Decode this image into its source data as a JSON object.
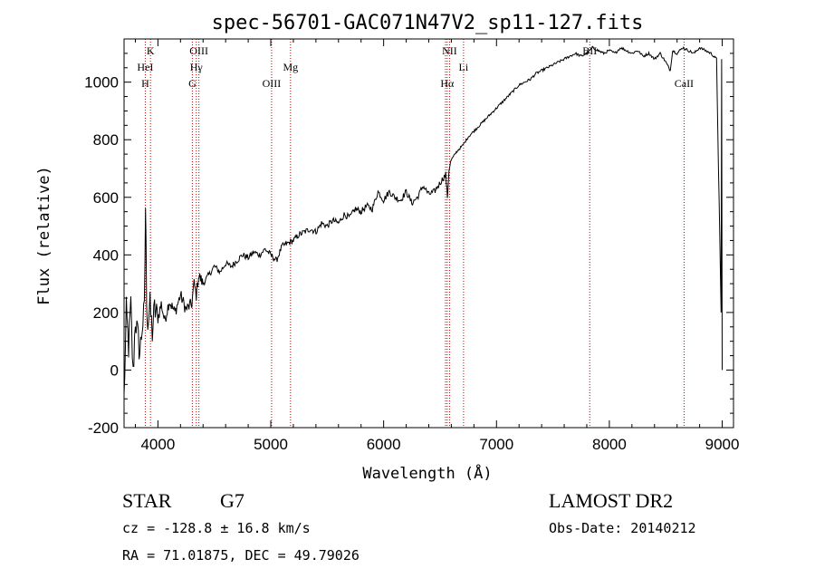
{
  "chart_data": {
    "type": "line",
    "title": "spec-56701-GAC071N47V2_sp11-127.fits",
    "xlabel": "Wavelength (Å)",
    "ylabel": "Flux (relative)",
    "xlim": [
      3700,
      9100
    ],
    "ylim": [
      -200,
      1150
    ],
    "xticks": [
      4000,
      5000,
      6000,
      7000,
      8000,
      9000
    ],
    "yticks": [
      -200,
      0,
      200,
      400,
      600,
      800,
      1000
    ],
    "grid": false,
    "line_color": "#000000",
    "marker_color": "#c00000",
    "series": [
      {
        "x": [
          3700,
          3720,
          3740,
          3760,
          3780,
          3800,
          3820,
          3840,
          3860,
          3880,
          3890,
          3900,
          3910,
          3930,
          3950,
          3970,
          4000,
          4030,
          4060,
          4100,
          4150,
          4200,
          4250,
          4300,
          4320,
          4340,
          4360,
          4400,
          4450,
          4500,
          4550,
          4600,
          4650,
          4700,
          4750,
          4800,
          4850,
          4900,
          4950,
          5000,
          5050,
          5100,
          5150,
          5200,
          5250,
          5300,
          5350,
          5400,
          5450,
          5500,
          5550,
          5600,
          5650,
          5700,
          5750,
          5800,
          5850,
          5900,
          5950,
          6000,
          6050,
          6100,
          6150,
          6200,
          6250,
          6300,
          6350,
          6400,
          6450,
          6500,
          6550,
          6565,
          6580,
          6600,
          6650,
          6700,
          6750,
          6800,
          6850,
          6900,
          6950,
          7000,
          7050,
          7100,
          7150,
          7200,
          7250,
          7300,
          7350,
          7400,
          7450,
          7500,
          7550,
          7600,
          7650,
          7700,
          7750,
          7800,
          7850,
          7900,
          7950,
          8000,
          8050,
          8100,
          8150,
          8200,
          8250,
          8300,
          8350,
          8400,
          8450,
          8500,
          8540,
          8560,
          8600,
          8650,
          8700,
          8750,
          8800,
          8850,
          8900,
          8950,
          8990,
          8995,
          9000
        ],
        "y": [
          -100,
          200,
          80,
          220,
          -20,
          180,
          120,
          60,
          150,
          200,
          570,
          260,
          160,
          220,
          130,
          210,
          180,
          230,
          170,
          240,
          200,
          260,
          210,
          230,
          300,
          260,
          330,
          300,
          330,
          360,
          340,
          370,
          360,
          380,
          400,
          390,
          410,
          400,
          420,
          400,
          380,
          430,
          440,
          450,
          470,
          480,
          490,
          480,
          510,
          500,
          520,
          510,
          540,
          530,
          560,
          550,
          570,
          560,
          620,
          590,
          620,
          600,
          590,
          620,
          580,
          600,
          640,
          610,
          620,
          650,
          680,
          600,
          700,
          730,
          760,
          780,
          810,
          830,
          850,
          870,
          890,
          910,
          930,
          950,
          970,
          990,
          1000,
          1010,
          1030,
          1040,
          1050,
          1060,
          1070,
          1080,
          1090,
          1100,
          1090,
          1100,
          1120,
          1110,
          1100,
          1110,
          1100,
          1120,
          1110,
          1100,
          1110,
          1090,
          1100,
          1080,
          1100,
          1070,
          1040,
          1110,
          1100,
          1120,
          1110,
          1100,
          1120,
          1110,
          1100,
          1080,
          200,
          1080,
          0
        ]
      }
    ],
    "lines": [
      {
        "x": 3888,
        "labels": [
          "HeI",
          "H"
        ]
      },
      {
        "x": 3934,
        "labels": [
          "K"
        ]
      },
      {
        "x": 4305,
        "labels": [
          "G"
        ]
      },
      {
        "x": 4340,
        "labels": [
          "Hγ"
        ]
      },
      {
        "x": 4363,
        "labels": [
          "OIII"
        ]
      },
      {
        "x": 5007,
        "labels": [
          "OIII"
        ]
      },
      {
        "x": 5175,
        "labels": [
          "Mg"
        ]
      },
      {
        "x": 6548,
        "labels": []
      },
      {
        "x": 6563,
        "labels": [
          "Hα"
        ]
      },
      {
        "x": 6584,
        "labels": [
          "NII"
        ]
      },
      {
        "x": 6708,
        "labels": [
          "Li"
        ]
      },
      {
        "x": 7826,
        "labels": [
          "BII"
        ]
      },
      {
        "x": 8662,
        "labels": [
          "CaII"
        ]
      }
    ]
  },
  "info": {
    "object_class": "STAR",
    "subclass": "G7",
    "survey": "LAMOST DR2",
    "velocity": "cz = -128.8 ± 16.8 km/s",
    "obs_date": "Obs-Date: 20140212",
    "coords": "RA =  71.01875, DEC =  49.79026"
  }
}
